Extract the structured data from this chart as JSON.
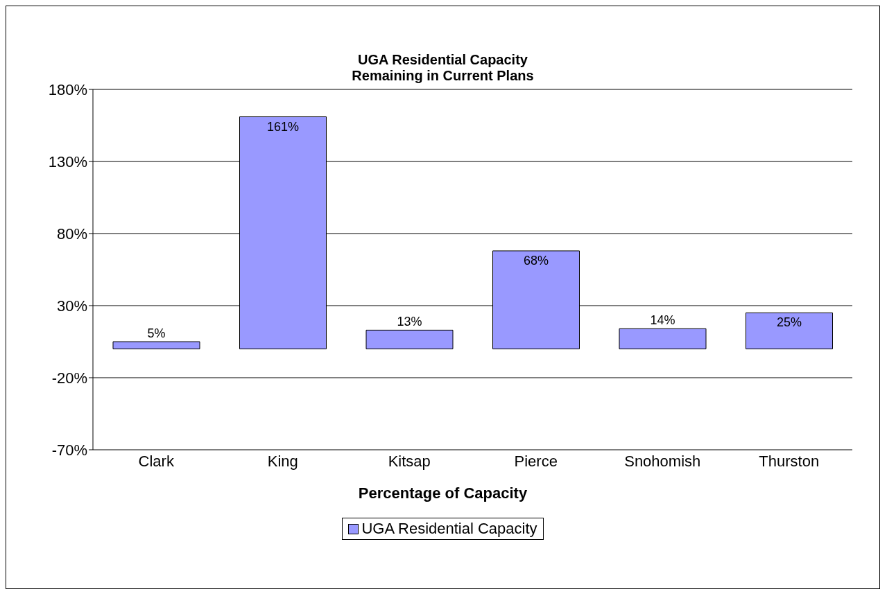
{
  "chart_data": {
    "type": "bar",
    "title": "UGA Residential Capacity\nRemaining in Current Plans",
    "xlabel": "Percentage of Capacity",
    "categories": [
      "Clark",
      "King",
      "Kitsap",
      "Pierce",
      "Snohomish",
      "Thurston"
    ],
    "series": [
      {
        "name": "UGA Residential Capacity",
        "color": "#9999ff",
        "values": [
          5,
          161,
          13,
          68,
          14,
          25
        ],
        "value_labels": [
          "5%",
          "161%",
          "13%",
          "68%",
          "14%",
          "25%"
        ]
      }
    ],
    "ylim": [
      -70,
      180
    ],
    "yticks": [
      {
        "value": -70,
        "label": "-70%"
      },
      {
        "value": -20,
        "label": "-20%"
      },
      {
        "value": 30,
        "label": "30%"
      },
      {
        "value": 80,
        "label": "80%"
      },
      {
        "value": 130,
        "label": "130%"
      },
      {
        "value": 180,
        "label": "180%"
      }
    ],
    "grid": "y",
    "legend": "bottom"
  }
}
